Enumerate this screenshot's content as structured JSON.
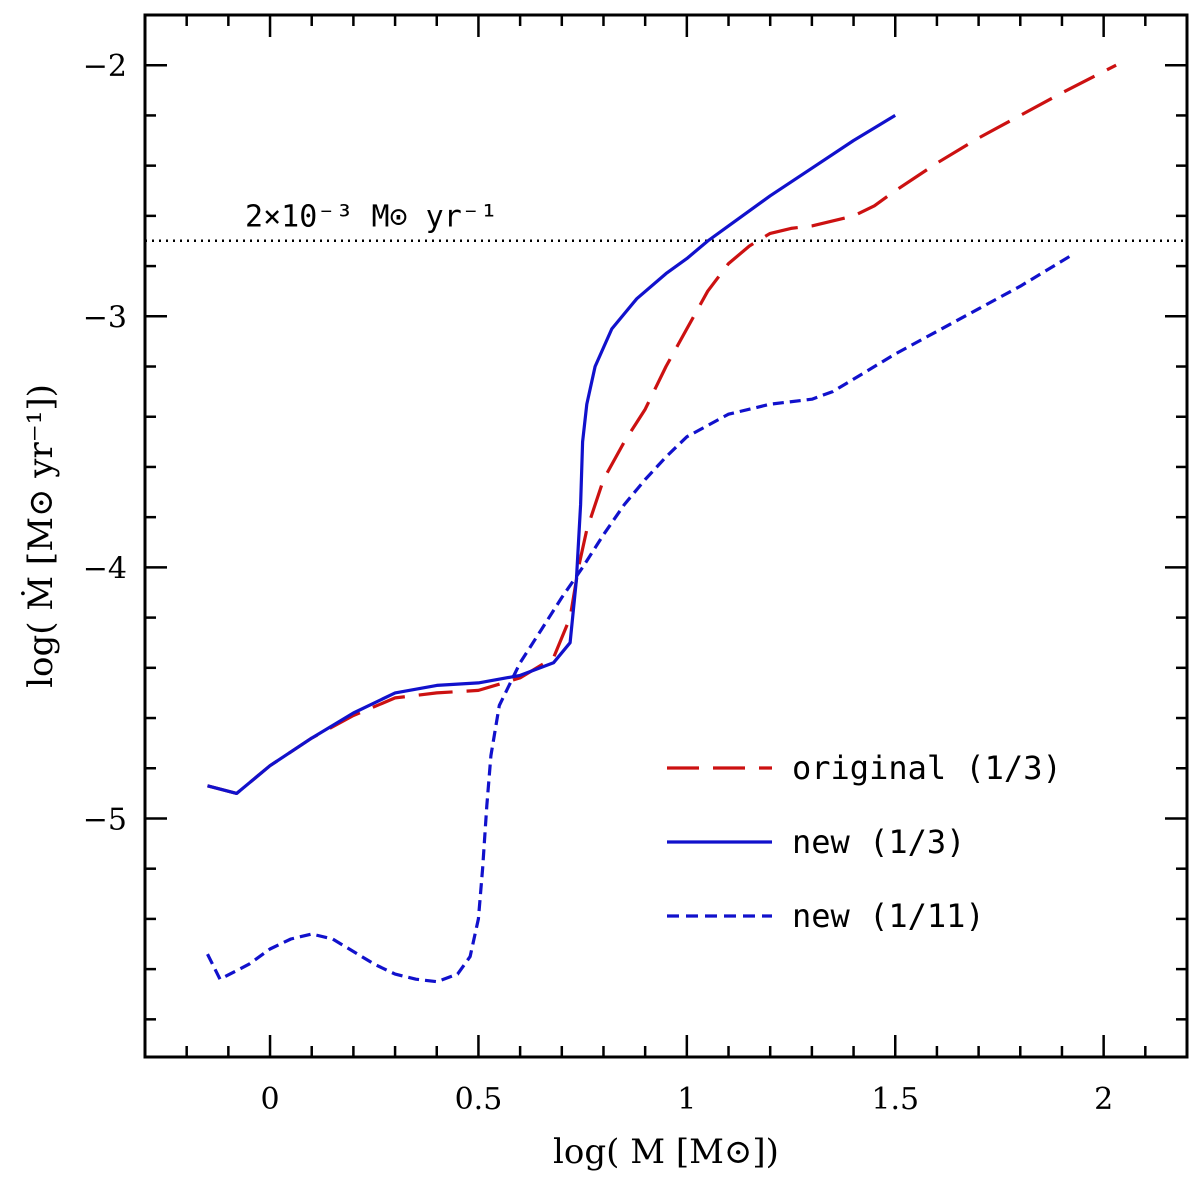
{
  "chart_data": {
    "type": "line",
    "xlabel": "log( M [M⊙])",
    "ylabel": "log( Ṁ [M⊙ yr⁻¹])",
    "xlim": [
      -0.3,
      2.2
    ],
    "ylim": [
      -5.95,
      -1.8
    ],
    "x_ticks": [
      0,
      0.5,
      1,
      1.5,
      2
    ],
    "x_tick_labels": [
      "0",
      "0.5",
      "1",
      "1.5",
      "2"
    ],
    "y_ticks": [
      -2,
      -3,
      -4,
      -5
    ],
    "y_tick_labels": [
      "−2",
      "−3",
      "−4",
      "−5"
    ],
    "reference_line": {
      "y": -2.699,
      "label": "2×10⁻³ M⊙ yr⁻¹",
      "style": "dotted"
    },
    "legend_position": "bottom-right",
    "series": [
      {
        "name": "original (1/3)",
        "color": "#cc1111",
        "style": "long-dash",
        "x": [
          -0.15,
          -0.08,
          0.0,
          0.1,
          0.2,
          0.3,
          0.4,
          0.5,
          0.6,
          0.68,
          0.72,
          0.74,
          0.76,
          0.8,
          0.85,
          0.9,
          0.95,
          1.0,
          1.05,
          1.1,
          1.15,
          1.2,
          1.25,
          1.3,
          1.35,
          1.4,
          1.45,
          1.5,
          1.6,
          1.7,
          1.8,
          1.9,
          2.03
        ],
        "y": [
          -4.87,
          -4.9,
          -4.79,
          -4.68,
          -4.59,
          -4.52,
          -4.5,
          -4.49,
          -4.44,
          -4.36,
          -4.2,
          -4.0,
          -3.85,
          -3.65,
          -3.5,
          -3.37,
          -3.2,
          -3.05,
          -2.9,
          -2.79,
          -2.72,
          -2.67,
          -2.65,
          -2.64,
          -2.62,
          -2.6,
          -2.56,
          -2.5,
          -2.39,
          -2.29,
          -2.2,
          -2.11,
          -2.0
        ]
      },
      {
        "name": "new (1/3)",
        "color": "#1111cc",
        "style": "solid",
        "x": [
          -0.15,
          -0.08,
          0.0,
          0.1,
          0.2,
          0.3,
          0.4,
          0.5,
          0.6,
          0.68,
          0.72,
          0.735,
          0.745,
          0.75,
          0.76,
          0.78,
          0.82,
          0.88,
          0.95,
          1.0,
          1.05,
          1.1,
          1.2,
          1.3,
          1.4,
          1.5
        ],
        "y": [
          -4.87,
          -4.9,
          -4.79,
          -4.68,
          -4.58,
          -4.5,
          -4.47,
          -4.46,
          -4.43,
          -4.38,
          -4.3,
          -4.05,
          -3.75,
          -3.5,
          -3.35,
          -3.2,
          -3.05,
          -2.93,
          -2.83,
          -2.77,
          -2.7,
          -2.64,
          -2.52,
          -2.41,
          -2.3,
          -2.2
        ]
      },
      {
        "name": "new (1/11)",
        "color": "#1111cc",
        "style": "short-dash",
        "x": [
          -0.15,
          -0.12,
          -0.05,
          0.0,
          0.05,
          0.1,
          0.15,
          0.2,
          0.25,
          0.3,
          0.35,
          0.4,
          0.45,
          0.48,
          0.5,
          0.51,
          0.52,
          0.53,
          0.55,
          0.6,
          0.65,
          0.7,
          0.75,
          0.8,
          0.85,
          0.9,
          0.95,
          1.0,
          1.1,
          1.2,
          1.3,
          1.35,
          1.4,
          1.5,
          1.6,
          1.7,
          1.8,
          1.92
        ],
        "y": [
          -5.54,
          -5.64,
          -5.58,
          -5.52,
          -5.48,
          -5.46,
          -5.48,
          -5.53,
          -5.58,
          -5.62,
          -5.64,
          -5.65,
          -5.62,
          -5.55,
          -5.4,
          -5.2,
          -4.95,
          -4.75,
          -4.55,
          -4.38,
          -4.25,
          -4.12,
          -4.0,
          -3.87,
          -3.75,
          -3.65,
          -3.56,
          -3.48,
          -3.39,
          -3.35,
          -3.33,
          -3.3,
          -3.25,
          -3.15,
          -3.06,
          -2.97,
          -2.88,
          -2.76
        ]
      }
    ]
  }
}
